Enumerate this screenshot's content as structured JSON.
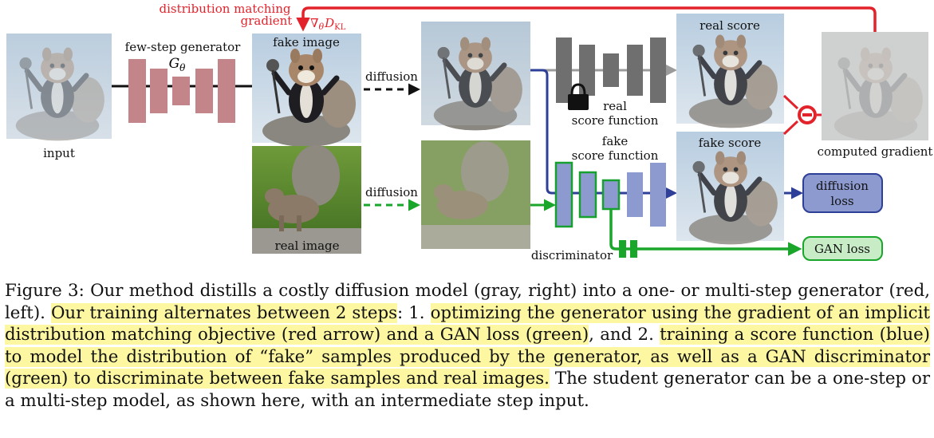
{
  "figure": {
    "labels": {
      "input": "input",
      "few_step_generator": "few-step generator",
      "generator_symbol_main": "G",
      "generator_symbol_sub": "θ",
      "fake_image": "fake image",
      "real_image": "real image",
      "diffusion_top": "diffusion",
      "diffusion_bottom": "diffusion",
      "dmg_line1": "distribution matching",
      "dmg_line2": "gradient",
      "grad_nabla": "∇",
      "grad_theta": "θ",
      "grad_D": "D",
      "grad_KL": "KL",
      "real_score_fn_line1": "real",
      "real_score_fn_line2": "score function",
      "fake_score_fn_line1": "fake",
      "fake_score_fn_line2": "score function",
      "real_score": "real score",
      "fake_score": "fake score",
      "computed_gradient": "computed gradient",
      "diffusion_loss_line1": "diffusion",
      "diffusion_loss_line2": "loss",
      "gan_loss": "GAN loss",
      "discriminator": "discriminator"
    },
    "colors": {
      "generator": "#c4858a",
      "real_network": "#6f6f6f",
      "fake_network": "#8d9ad0",
      "fake_network_stroke": "#16a02f",
      "red_arrow": "#e3232c",
      "blue_arrow": "#2e3f98",
      "green_arrow": "#1aa62a",
      "gray_arrow": "#9b9b9b",
      "diffusion_loss_box": "#8d9ad0",
      "gan_loss_box": "#c8ecc6",
      "highlight": "#fcf7a0"
    }
  },
  "caption": {
    "p1": "Figure 3: Our method distills a costly diffusion model (gray, right) into a one- or multi-step generator (red, left). ",
    "h1": "Our training alternates between 2 steps",
    "p2": ": 1. ",
    "h2": "optimizing the generator using the gradient of an implicit distribution matching objective (red arrow) and a GAN loss (green)",
    "p3": ", and 2. ",
    "h3": "training a score function (blue) to model the distribution of “fake” samples produced by the generator, as well as a GAN discriminator (green) to discriminate between fake samples and real images.",
    "p4": " The student generator can be a one-step or a multi-step model, as shown here, with an intermediate step input."
  }
}
